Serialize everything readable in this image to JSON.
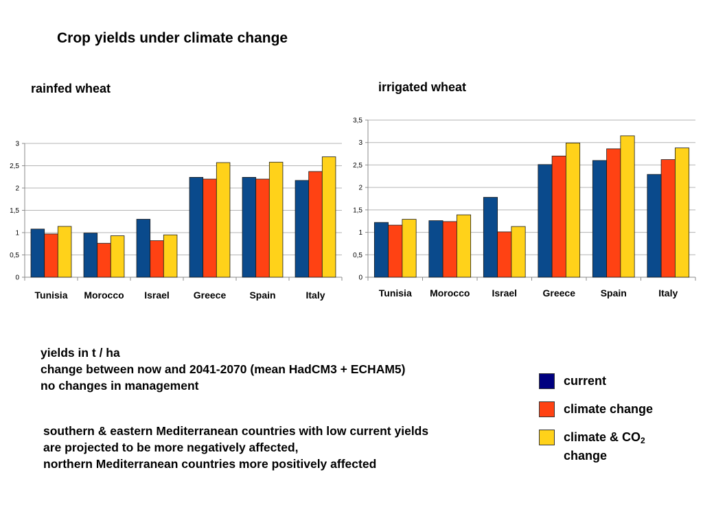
{
  "page": {
    "title": "Crop yields under climate change"
  },
  "colors": {
    "current": "#0a4a8c",
    "climate_change": "#ff4213",
    "climate_co2": "#ffd21a",
    "grid": "#b3b3b3",
    "axis": "#8a8a8a"
  },
  "chart_data": [
    {
      "type": "bar",
      "title": "rainfed wheat",
      "categories": [
        "Tunisia",
        "Morocco",
        "Israel",
        "Greece",
        "Spain",
        "Italy"
      ],
      "series": [
        {
          "name": "current",
          "values": [
            1.08,
            0.99,
            1.3,
            2.24,
            2.24,
            2.17
          ]
        },
        {
          "name": "climate change",
          "values": [
            0.97,
            0.76,
            0.82,
            2.2,
            2.2,
            2.37
          ]
        },
        {
          "name": "climate & CO2 change",
          "values": [
            1.14,
            0.93,
            0.95,
            2.57,
            2.58,
            2.7
          ]
        }
      ],
      "ylim": [
        0,
        3
      ],
      "yticks": [
        "0",
        "0,5",
        "1",
        "1,5",
        "2",
        "2,5",
        "3"
      ],
      "grid": true
    },
    {
      "type": "bar",
      "title": "irrigated wheat",
      "categories": [
        "Tunisia",
        "Morocco",
        "Israel",
        "Greece",
        "Spain",
        "Italy"
      ],
      "series": [
        {
          "name": "current",
          "values": [
            1.22,
            1.26,
            1.78,
            2.51,
            2.6,
            2.29
          ]
        },
        {
          "name": "climate change",
          "values": [
            1.16,
            1.24,
            1.01,
            2.7,
            2.86,
            2.62
          ]
        },
        {
          "name": "climate & CO2 change",
          "values": [
            1.29,
            1.39,
            1.13,
            2.99,
            3.15,
            2.88
          ]
        }
      ],
      "ylim": [
        0,
        3.5
      ],
      "yticks": [
        "0",
        "0,5",
        "1",
        "1,5",
        "2",
        "2,5",
        "3",
        "3,5"
      ],
      "grid": true
    }
  ],
  "notes": [
    "yields in t / ha",
    "change between now and 2041-2070 (mean HadCM3 + ECHAM5)",
    "no changes in management"
  ],
  "summary": [
    "southern & eastern Mediterranean countries with low current yields",
    "are projected to be more negatively affected,",
    "northern Mediterranean countries more positively affected"
  ],
  "legend": {
    "current": "current",
    "climate_change": "climate change",
    "co2_line1_prefix": "climate & CO",
    "co2_sub": "2",
    "co2_line2": "change",
    "current_color": "#000080",
    "climate_change_color": "#ff4213",
    "co2_color": "#ffd21a"
  }
}
